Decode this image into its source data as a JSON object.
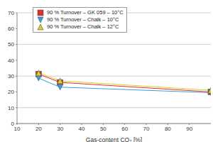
{
  "chart_data": {
    "type": "line",
    "x_label": "Gas-content CO₂ [%]",
    "x": [
      20,
      30,
      100
    ],
    "xlim": [
      10,
      100
    ],
    "xticks": [
      10,
      20,
      30,
      40,
      50,
      60,
      70,
      80,
      90
    ],
    "ylim": [
      0,
      70
    ],
    "yticks": [
      0,
      10,
      20,
      30,
      40,
      50,
      60,
      70
    ],
    "grid": true,
    "legend": "top left",
    "series": [
      {
        "name": "90 % Turnover – GK 059 – 10°C",
        "color": "#e0302c",
        "marker": "square",
        "line_style": "solid",
        "values": [
          31.3,
          26,
          20
        ]
      },
      {
        "name": "90 % Turnover – Chalk – 10°C",
        "color": "#3f9ad8",
        "marker": "triangle-down",
        "line_style": "solid",
        "values": [
          28.7,
          23,
          19.5
        ]
      },
      {
        "name": "90 % Turnover – Chalk – 12°C",
        "color": "#d8d024",
        "marker": "triangle-up",
        "line_style": "solid",
        "values": [
          32,
          27,
          21
        ]
      }
    ]
  }
}
